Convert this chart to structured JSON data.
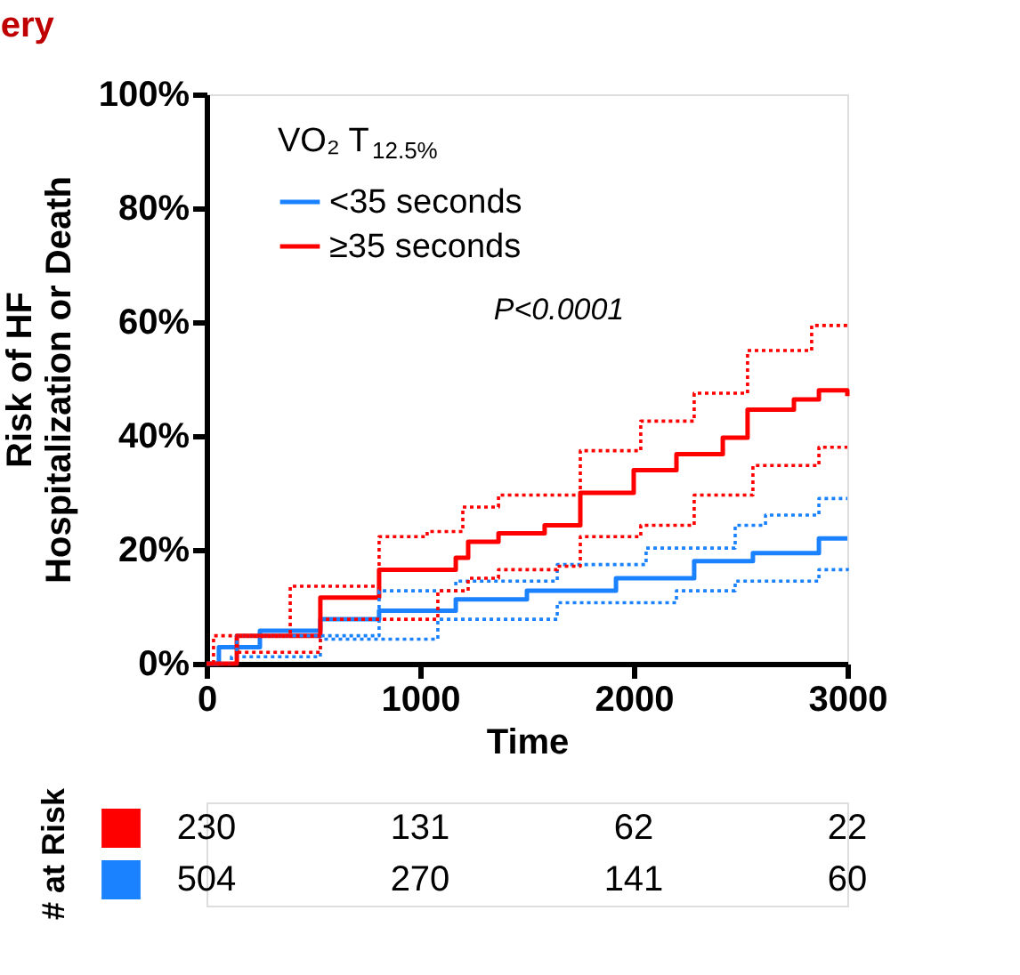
{
  "chart_data": {
    "type": "step",
    "title": "ery",
    "xlabel": "Time",
    "ylabel": "Risk of HF\nHospitalization or Death",
    "legend_title": "VO₂ T$_{12.5%}$",
    "xlim": [
      0,
      3000
    ],
    "xticks": [
      0,
      1000,
      2000,
      3000
    ],
    "ylim": [
      0,
      100
    ],
    "yticks": [
      {
        "value": 0,
        "label": "0%"
      },
      {
        "value": 20,
        "label": "20%"
      },
      {
        "value": 40,
        "label": "40%"
      },
      {
        "value": 60,
        "label": "60%"
      },
      {
        "value": 80,
        "label": "80%"
      },
      {
        "value": 100,
        "label": "100%"
      }
    ],
    "grid": false,
    "legend": "top left",
    "series": [
      {
        "name": "<35 seconds",
        "color": "#1a82ff",
        "line_style": "solid",
        "x": [
          0,
          58,
          250,
          533,
          808,
          1167,
          1500,
          1917,
          2283,
          2558,
          2867,
          3000
        ],
        "values": [
          0,
          2.9,
          5.8,
          7.8,
          9.3,
          11.3,
          12.8,
          15,
          18,
          19.4,
          22,
          22
        ]
      },
      {
        "name": "≥35 seconds",
        "color": "#ff0000",
        "line_style": "solid",
        "x": [
          0,
          142,
          533,
          808,
          1167,
          1225,
          1367,
          1583,
          1750,
          2000,
          2200,
          2417,
          2533,
          2750,
          2867,
          3000
        ],
        "values": [
          0,
          4.9,
          11.6,
          16.5,
          18.6,
          21.4,
          22.9,
          24.3,
          30,
          34,
          36.8,
          39.7,
          44.6,
          46.4,
          48,
          47
        ]
      },
      {
        "color": "#1a82ff",
        "line_style": "dotted",
        "x": [
          0,
          142,
          808,
          1167,
          1642,
          2058,
          2475,
          2617,
          2867,
          3000
        ],
        "values": [
          0,
          4.9,
          12.8,
          14.5,
          17.4,
          20.3,
          24.3,
          26.1,
          29,
          29
        ]
      },
      {
        "color": "#1a82ff",
        "line_style": "dotted",
        "x": [
          0,
          117,
          533,
          1083,
          1642,
          2200,
          2475,
          2867,
          3000
        ],
        "values": [
          0,
          1.2,
          4.3,
          7.8,
          10.7,
          12.8,
          14.5,
          16.5,
          16.8
        ]
      },
      {
        "color": "#ff0000",
        "line_style": "dotted",
        "x": [
          0,
          33,
          392,
          808,
          1033,
          1200,
          1367,
          1583,
          1750,
          2033,
          2283,
          2417,
          2533,
          2750,
          2833,
          3000
        ],
        "values": [
          0,
          4.9,
          13.6,
          22.3,
          23.2,
          27.5,
          29.6,
          29.6,
          37.4,
          42.6,
          47.5,
          47.5,
          55,
          55,
          59.4,
          59.4
        ]
      },
      {
        "color": "#ff0000",
        "line_style": "dotted",
        "x": [
          0,
          142,
          533,
          1083,
          1225,
          1367,
          1642,
          1750,
          2033,
          2283,
          2417,
          2558,
          2867,
          3000
        ],
        "values": [
          0,
          2,
          7.8,
          12.8,
          15,
          16.5,
          17.1,
          22.3,
          24.3,
          29.6,
          29.6,
          34.8,
          38,
          38
        ]
      }
    ],
    "annotations": [
      "P<0.0001",
      "# at Risk",
      "230",
      "131",
      "62",
      "22",
      "504",
      "270",
      "141",
      "60"
    ]
  }
}
